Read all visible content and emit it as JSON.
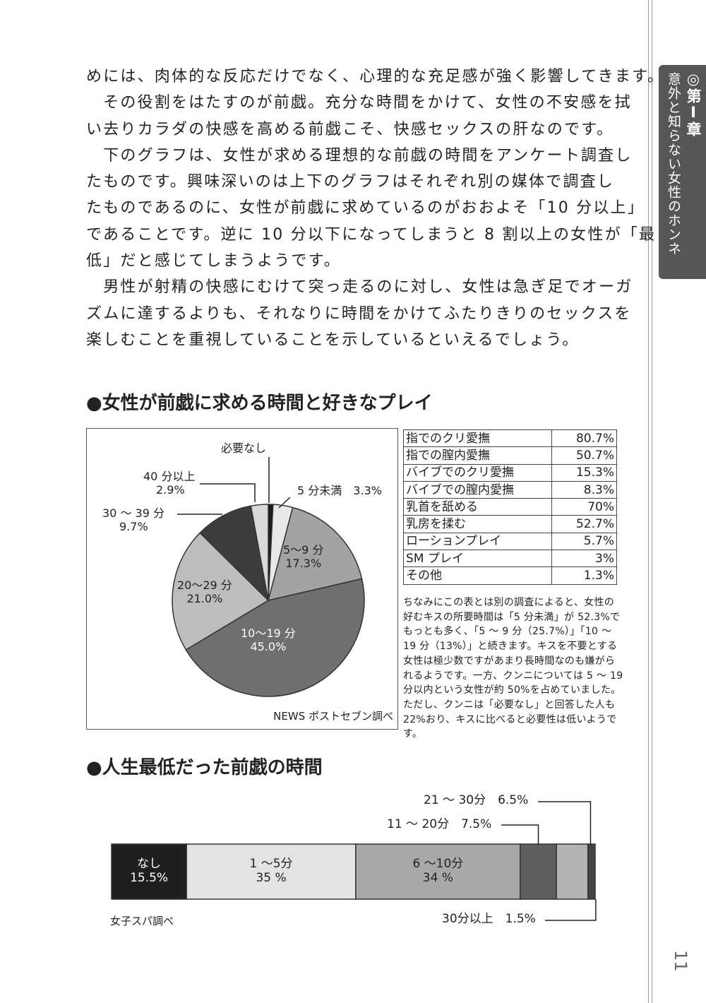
{
  "body": [
    "めには、肉体的な反応だけでなく、心理的な充足感が強く影響してきます。",
    "　その役割をはたすのが前戯。充分な時間をかけて、女性の不安感を拭",
    "い去りカラダの快感を高める前戯こそ、快感セックスの肝なのです。",
    "　下のグラフは、女性が求める理想的な前戯の時間をアンケート調査し",
    "たものです。興味深いのは上下のグラフはそれぞれ別の媒体で調査し",
    "たものであるのに、女性が前戯に求めているのがおおよそ「10 分以上」",
    "であることです。逆に 10 分以下になってしまうと 8 割以上の女性が「最",
    "低」だと感じてしまうようです。",
    "　男性が射精の快感にむけて突っ走るのに対し、女性は急ぎ足でオーガ",
    "ズムに達するよりも、それなりに時間をかけてふたりきりのセックスを",
    "楽しむことを重視していることを示しているといえるでしょう。"
  ],
  "side_tab": {
    "chapter": "◎第Ⅰ章",
    "title": "意外と知らない女性のホンネ"
  },
  "page_number": "11",
  "section1": {
    "title": "●女性が前戯に求める時間と好きなプレイ",
    "source": "NEWS ポストセブン調べ"
  },
  "section2": {
    "title": "●人生最低だった前戯の時間",
    "source": "女子スパ調べ"
  },
  "play_table": [
    [
      "指でのクリ愛撫",
      "80.7%"
    ],
    [
      "指での膣内愛撫",
      "50.7%"
    ],
    [
      "バイブでのクリ愛撫",
      "15.3%"
    ],
    [
      "バイブでの膣内愛撫",
      "8.3%"
    ],
    [
      "乳首を舐める",
      "70%"
    ],
    [
      "乳房を揉む",
      "52.7%"
    ],
    [
      "ローションプレイ",
      "5.7%"
    ],
    [
      "SM プレイ",
      "3%"
    ],
    [
      "その他",
      "1.3%"
    ]
  ],
  "note": "ちなみにこの表とは別の調査によると、女性の好むキスの所要時間は「5 分未満」が 52.3%でもっとも多く、「5 ～ 9 分（25.7%）」「10 ～ 19 分（13%）」と続きます。キスを不要とする女性は極少数ですがあまり長時間なのも嫌がられるようです。一方、クンニについては 5 ～ 19 分以内という女性が約 50%を占めていました。ただし、クンニは「必要なし」と回答した人も 22%おり、キスに比べると必要性は低いようです。",
  "chart_data": [
    {
      "type": "pie",
      "slices": [
        {
          "label": "必要なし",
          "value": 0.8,
          "value_label": "",
          "color": "#1a1a1a"
        },
        {
          "label": "5 分未満",
          "value": 3.3,
          "value_label": "3.3%",
          "color": "#e8e8e8"
        },
        {
          "label": "5～9 分",
          "value": 17.3,
          "value_label": "17.3%",
          "color": "#a3a3a3"
        },
        {
          "label": "10～19 分",
          "value": 45.0,
          "value_label": "45.0%",
          "color": "#6f6f6f"
        },
        {
          "label": "20～29 分",
          "value": 21.0,
          "value_label": "21.0%",
          "color": "#bdbdbd"
        },
        {
          "label": "30 ～ 39 分",
          "value": 9.7,
          "value_label": "9.7%",
          "color": "#3c3c3c"
        },
        {
          "label": "40 分以上",
          "value": 2.9,
          "value_label": "2.9%",
          "color": "#d9d9d9"
        }
      ]
    },
    {
      "type": "bar",
      "stacked": true,
      "segments": [
        {
          "label": "なし",
          "value": 15.5,
          "value_label": "15.5%",
          "color": "#1f1f1f"
        },
        {
          "label": "1 ～5分",
          "value": 35,
          "value_label": "35 %",
          "color": "#e3e3e3"
        },
        {
          "label": "6 ～10分",
          "value": 34,
          "value_label": "34 %",
          "color": "#a8a8a8"
        },
        {
          "label": "11 ～ 20分",
          "value": 7.5,
          "value_label": "7.5%",
          "color": "#5e5e5e"
        },
        {
          "label": "21 ～ 30分",
          "value": 6.5,
          "value_label": "6.5%",
          "color": "#b3b3b3"
        },
        {
          "label": "30分以上",
          "value": 1.5,
          "value_label": "1.5%",
          "color": "#444444"
        }
      ]
    }
  ]
}
